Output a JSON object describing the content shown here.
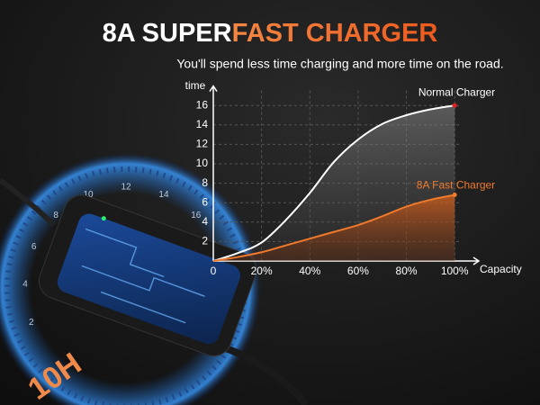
{
  "chart_data": {
    "type": "line",
    "title": [
      "8A SUPER",
      "FAST CHARGER"
    ],
    "subtitle": "You'll spend less time charging and more time on the road.",
    "y_label": "time",
    "x_label": "Capacity",
    "x": [
      0,
      10,
      20,
      30,
      40,
      50,
      60,
      70,
      80,
      90,
      100
    ],
    "series": [
      {
        "name": "Normal Charger",
        "color": "#ffffff",
        "values": [
          0,
          0.8,
          1.9,
          4.2,
          7,
          10.2,
          12.5,
          14.1,
          15,
          15.6,
          16
        ]
      },
      {
        "name": "8A Fast Charger",
        "color": "#f07a2c",
        "values": [
          0,
          0.4,
          0.9,
          1.6,
          2.3,
          3,
          3.7,
          4.6,
          5.6,
          6.3,
          6.8
        ]
      }
    ],
    "xlim": [
      0,
      110
    ],
    "ylim": [
      0,
      18
    ],
    "xticks": [
      0,
      {
        "value": 20,
        "label": "20%"
      },
      {
        "value": 40,
        "label": "40%"
      },
      {
        "value": 60,
        "label": "60%"
      },
      {
        "value": 80,
        "label": "80%"
      },
      {
        "value": 100,
        "label": "100%"
      }
    ],
    "yticks": [
      2,
      4,
      6,
      8,
      10,
      12,
      14,
      16
    ],
    "grid": true,
    "dial_labels": [
      "2",
      "4",
      "6",
      "8",
      "10",
      "12",
      "14",
      "16"
    ],
    "badge": "10H"
  }
}
